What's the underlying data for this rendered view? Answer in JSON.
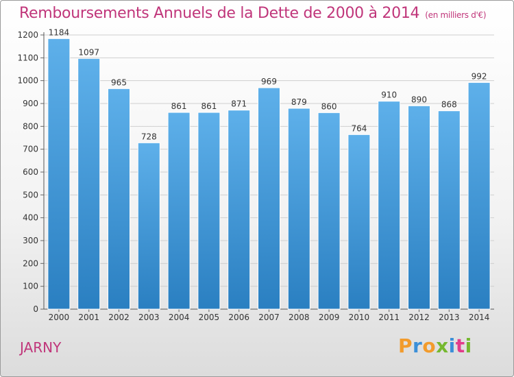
{
  "header": {
    "title": "Remboursements Annuels de la Dette de 2000 à 2014",
    "unit": "(en milliers d'€)"
  },
  "footer": {
    "city": "JARNY",
    "logo_text": "Proxiti"
  },
  "colors": {
    "title": "#c0357a",
    "bar_top": "#5eb0ea",
    "bar_bottom": "#2a7fc1",
    "gridline": "#cfcfcf",
    "logo_letters": [
      "#f29b2c",
      "#3b8fd8",
      "#f29b2c",
      "#75b82f",
      "#3b8fd8",
      "#e23c8a",
      "#75b82f"
    ]
  },
  "chart_data": {
    "type": "bar",
    "title": "Remboursements Annuels de la Dette de 2000 à 2014",
    "subtitle": "(en milliers d'€)",
    "categories": [
      "2000",
      "2001",
      "2002",
      "2003",
      "2004",
      "2005",
      "2006",
      "2007",
      "2008",
      "2009",
      "2010",
      "2011",
      "2012",
      "2013",
      "2014"
    ],
    "values": [
      1184,
      1097,
      965,
      728,
      861,
      861,
      871,
      969,
      879,
      860,
      764,
      910,
      890,
      868,
      992
    ],
    "ylim": [
      0,
      1200
    ],
    "yticks": [
      0,
      100,
      200,
      300,
      400,
      500,
      600,
      700,
      800,
      900,
      1000,
      1100,
      1200
    ],
    "grid": true,
    "data_labels": true
  }
}
